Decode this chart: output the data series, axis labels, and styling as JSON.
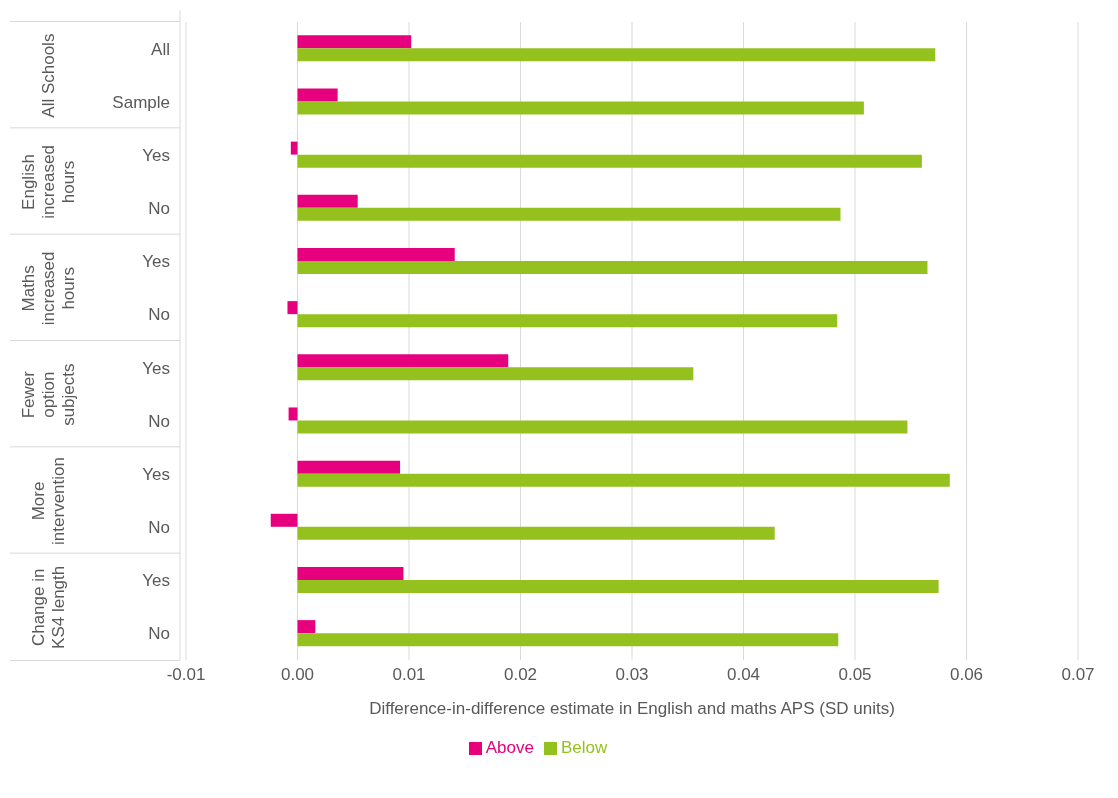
{
  "chart_data": {
    "type": "bar",
    "orientation": "horizontal",
    "xlabel": "Difference-in-difference estimate in English and maths APS (SD units)",
    "categories": [
      "All",
      "Sample",
      "Yes",
      "No",
      "Yes",
      "No",
      "Yes",
      "No",
      "Yes",
      "No",
      "Yes",
      "No"
    ],
    "annotations": [
      "All Schools",
      "English increased hours",
      "Maths increased hours",
      "Fewer option subjects",
      "More intervention",
      "Change in KS4 length"
    ],
    "series": [
      {
        "name": "Above",
        "color": "#e6007e",
        "values": [
          0.0102,
          0.0036,
          -0.0006,
          0.0054,
          0.0141,
          -0.0009,
          0.0189,
          -0.0008,
          0.0092,
          -0.0024,
          0.0095,
          0.0016
        ]
      },
      {
        "name": "Below",
        "color": "#95c11f",
        "values": [
          0.0572,
          0.0508,
          0.056,
          0.0487,
          0.0565,
          0.0484,
          0.0355,
          0.0547,
          0.0585,
          0.0428,
          0.0575,
          0.0485
        ]
      }
    ],
    "xlim": [
      -0.01,
      0.07
    ],
    "xticks": [
      {
        "value": -0.01,
        "label": "-0.01"
      },
      {
        "value": 0,
        "label": "0.00"
      },
      {
        "value": 0.01,
        "label": "0.01"
      },
      {
        "value": 0.02,
        "label": "0.02"
      },
      {
        "value": 0.03,
        "label": "0.03"
      },
      {
        "value": 0.04,
        "label": "0.04"
      },
      {
        "value": 0.05,
        "label": "0.05"
      },
      {
        "value": 0.06,
        "label": "0.06"
      },
      {
        "value": 0.07,
        "label": "0.07"
      }
    ],
    "grid": "x",
    "legend": "bottom"
  }
}
